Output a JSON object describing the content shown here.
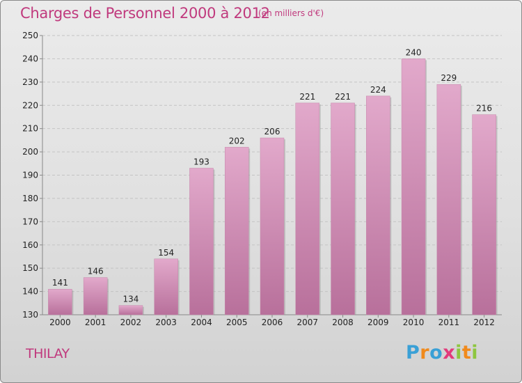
{
  "header": {
    "title": "Charges de Personnel 2000 à 2012",
    "subtitle": "(en milliers d'€)"
  },
  "footer": {
    "place": "THILAY",
    "logo_letters": [
      "P",
      "r",
      "o",
      "x",
      "i",
      "t",
      "i"
    ],
    "logo_colors": [
      "#3aa0d6",
      "#f08a1c",
      "#3aa0d6",
      "#e23a7b",
      "#8dc63f",
      "#f08a1c",
      "#8dc63f"
    ]
  },
  "chart_data": {
    "type": "bar",
    "categories": [
      "2000",
      "2001",
      "2002",
      "2003",
      "2004",
      "2005",
      "2006",
      "2007",
      "2008",
      "2009",
      "2010",
      "2011",
      "2012"
    ],
    "values": [
      141,
      146,
      134,
      154,
      193,
      202,
      206,
      221,
      221,
      224,
      240,
      229,
      216
    ],
    "ylim": [
      130,
      250
    ],
    "yticks": [
      130,
      140,
      150,
      160,
      170,
      180,
      190,
      200,
      210,
      220,
      230,
      240,
      250
    ],
    "grid": true,
    "bar_color": "#d38fb5"
  }
}
